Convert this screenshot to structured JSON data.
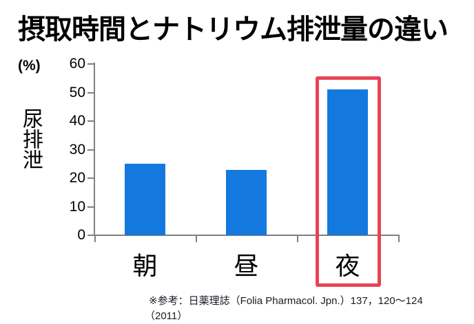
{
  "title": "摂取時間とナトリウム排泄量の違い",
  "unit_label": "(%)",
  "y_axis_label": "尿排泄",
  "footer": {
    "line1": "※参考：日薬理誌（Folia Pharmacol. Jpn.）137，120〜124",
    "line2": "（2011）"
  },
  "colors": {
    "bar": "#1379df",
    "highlight": "#e84356",
    "axis": "#808080",
    "title_text": "#000000",
    "footer_text": "#1a1a24"
  },
  "chart_data": {
    "type": "bar",
    "title": "摂取時間とナトリウム排泄量の違い",
    "categories": [
      "朝",
      "昼",
      "夜"
    ],
    "values": [
      25,
      23,
      51
    ],
    "xlabel": "",
    "ylabel": "尿排泄",
    "y_unit": "(%)",
    "ylim": [
      0,
      60
    ],
    "yticks": [
      0,
      10,
      20,
      30,
      40,
      50,
      60
    ],
    "grid": false,
    "legend": false,
    "highlight_index": 2
  }
}
